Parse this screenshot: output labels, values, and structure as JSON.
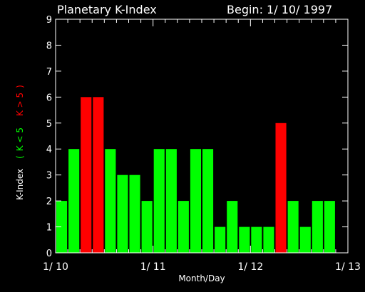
{
  "header": {
    "title": "Planetary K-Index",
    "begin_label": "Begin: 1/ 10/ 1997"
  },
  "colors": {
    "background": "#000000",
    "axis": "#ffffff",
    "low": "#00ff00",
    "high": "#ff0000"
  },
  "chart_data": {
    "type": "bar",
    "title": "Planetary K-Index",
    "subtitle": "Begin: 1/ 10/ 1997",
    "xlabel": "Month/Day",
    "ylabel_parts": [
      {
        "text": "K-Index",
        "color": "#ffffff"
      },
      {
        "text": "(",
        "color": "#00ff00"
      },
      {
        "text": "K < 5",
        "color": "#00ff00"
      },
      {
        "text": "K > 5",
        "color": "#ff0000"
      },
      {
        "text": ")",
        "color": "#ff0000"
      }
    ],
    "ylim": [
      0,
      9
    ],
    "yticks": [
      0,
      1,
      2,
      3,
      4,
      5,
      6,
      7,
      8,
      9
    ],
    "xlim_days": [
      0,
      3
    ],
    "xtick_labels": [
      "1/ 10",
      "1/ 11",
      "1/ 12",
      "1/ 13"
    ],
    "bars_per_day": 8,
    "values": [
      2,
      4,
      6,
      6,
      4,
      3,
      3,
      2,
      4,
      4,
      2,
      4,
      4,
      1,
      2,
      1,
      1,
      1,
      5,
      2,
      1,
      2,
      2
    ],
    "threshold": 5,
    "grid": false,
    "legend": "none"
  }
}
